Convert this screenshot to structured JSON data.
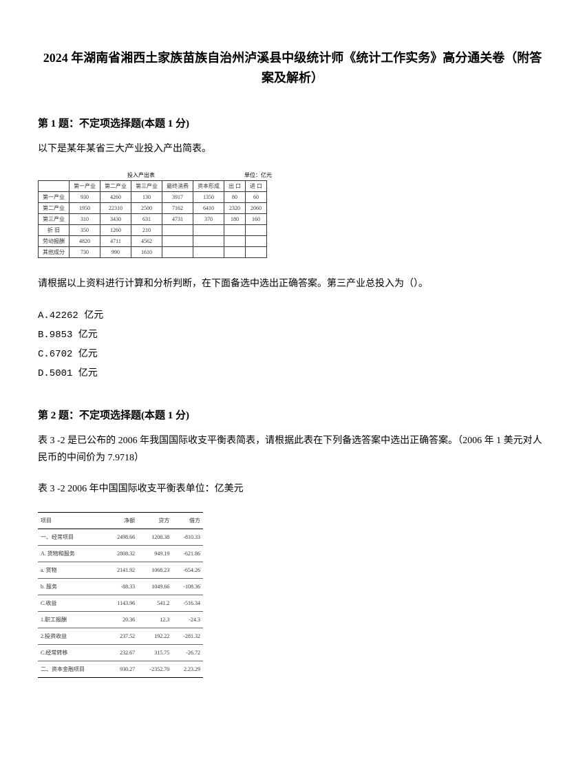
{
  "title": "2024 年湖南省湘西土家族苗族自治州泸溪县中级统计师《统计工作实务》高分通关卷（附答案及解析）",
  "q1": {
    "header": "第 1 题：不定项选择题(本题 1 分)",
    "text1": "以下是某年某省三大产业投入产出简表。",
    "text2": "请根据以上资料进行计算和分析判断，在下面备选中选出正确答案。第三产业总投入为（）。",
    "options": {
      "a": "A.42262 亿元",
      "b": "B.9853 亿元",
      "c": "C.6702 亿元",
      "d": "D.5001 亿元"
    },
    "table": {
      "caption": "投入产出表",
      "unit": "单位：亿元",
      "headers": [
        "",
        "第一产业",
        "第二产业",
        "第三产业",
        "最终消费",
        "资本形成",
        "出 口",
        "进 口"
      ],
      "rows": [
        [
          "第一产业",
          "930",
          "4260",
          "130",
          "3917",
          "1350",
          "80",
          "60"
        ],
        [
          "第二产业",
          "1950",
          "22310",
          "2500",
          "7162",
          "6410",
          "2320",
          "2060"
        ],
        [
          "第三产业",
          "310",
          "3430",
          "631",
          "4731",
          "370",
          "180",
          "160"
        ],
        [
          "折 旧",
          "350",
          "1260",
          "210",
          "",
          "",
          "",
          ""
        ],
        [
          "劳动报酬",
          "4820",
          "4711",
          "4562",
          "",
          "",
          "",
          ""
        ],
        [
          "其他成分",
          "730",
          "990",
          "1610",
          "",
          "",
          "",
          ""
        ]
      ]
    }
  },
  "q2": {
    "header": "第 2 题：不定项选择题(本题 1 分)",
    "text1": "表 3 -2 是已公布的 2006 年我国国际收支平衡表简表，请根据此表在下列备选答案中选出正确答案。（2006 年 1 美元对人民币的中间价为 7.9718）",
    "text2": "表 3 -2  2006 年中国国际收支平衡表单位：亿美元",
    "table": {
      "headers": [
        "项目",
        "净额",
        "贷方",
        "借方"
      ],
      "rows": [
        [
          "一、经常项目",
          "2498.66",
          "1208.38",
          "-810.33"
        ],
        [
          "A. 货物和服务",
          "2808.32",
          "949.19",
          "-621.86"
        ],
        [
          "a. 货物",
          "2141.92",
          "1068.23",
          "-654.26"
        ],
        [
          "b. 服务",
          "-88.33",
          "1049.66",
          "-108.36"
        ],
        [
          "C.收益",
          "1143.96",
          "541.2",
          "-516.34"
        ],
        [
          "1.职工报酬",
          "20.36",
          "12.3",
          "-24.3"
        ],
        [
          "2.投资收益",
          "237.52",
          "192.22",
          "-281.32"
        ],
        [
          "C.经常转移",
          "232.67",
          "315.75",
          "-26.72"
        ],
        [
          "二、资本金融项目",
          "930.27",
          "-2352.70",
          "2.23.29"
        ]
      ]
    }
  }
}
